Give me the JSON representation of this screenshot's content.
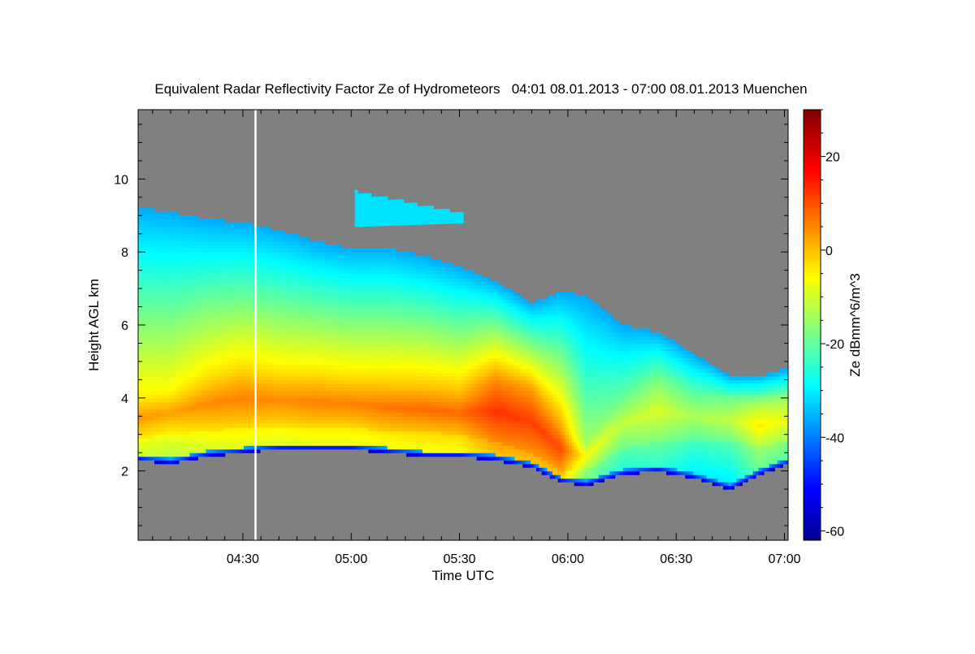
{
  "chart_data": {
    "type": "heatmap",
    "title": "Equivalent Radar Reflectivity Factor Ze of Hydrometeors   04:01 08.01.2013 - 07:00 08.01.2013 Muenchen",
    "xlabel": "Time UTC",
    "ylabel": "Height AGL km",
    "x_ticks": [
      "04:30",
      "05:00",
      "05:30",
      "06:00",
      "06:30",
      "07:00"
    ],
    "x_tick_minutes": [
      270,
      300,
      330,
      360,
      390,
      420
    ],
    "xlim_minutes": [
      241,
      421
    ],
    "y_ticks": [
      2,
      4,
      6,
      8,
      10
    ],
    "ylim": [
      0.1,
      11.9
    ],
    "colorbar": {
      "label": "Ze dBmm^6/m^3",
      "range": [
        -62,
        30
      ],
      "ticks": [
        -60,
        -40,
        -20,
        0,
        20
      ],
      "colormap": "jet"
    },
    "background_color": "#808080",
    "gap_line_minutes": 273.5,
    "cloud_profile": [
      {
        "t": 241,
        "base": 2.3,
        "top": 9.2,
        "core_lo": 2.9,
        "core_hi": 4.0,
        "core_ze": 5
      },
      {
        "t": 250,
        "base": 2.2,
        "top": 9.1,
        "core_lo": 3.0,
        "core_hi": 4.2,
        "core_ze": 4
      },
      {
        "t": 260,
        "base": 2.4,
        "top": 8.9,
        "core_lo": 3.1,
        "core_hi": 4.6,
        "core_ze": 6
      },
      {
        "t": 270,
        "base": 2.5,
        "top": 8.8,
        "core_lo": 3.2,
        "core_hi": 4.8,
        "core_ze": 7
      },
      {
        "t": 280,
        "base": 2.6,
        "top": 8.6,
        "core_lo": 3.2,
        "core_hi": 4.7,
        "core_ze": 6
      },
      {
        "t": 290,
        "base": 2.6,
        "top": 8.3,
        "core_lo": 3.2,
        "core_hi": 4.6,
        "core_ze": 7
      },
      {
        "t": 300,
        "base": 2.6,
        "top": 8.1,
        "core_lo": 3.2,
        "core_hi": 4.5,
        "core_ze": 7
      },
      {
        "t": 310,
        "base": 2.5,
        "top": 8.1,
        "core_lo": 3.1,
        "core_hi": 4.4,
        "core_ze": 8
      },
      {
        "t": 320,
        "base": 2.4,
        "top": 7.9,
        "core_lo": 3.1,
        "core_hi": 4.3,
        "core_ze": 9
      },
      {
        "t": 330,
        "base": 2.4,
        "top": 7.6,
        "core_lo": 3.0,
        "core_hi": 4.2,
        "core_ze": 9
      },
      {
        "t": 340,
        "base": 2.3,
        "top": 7.2,
        "core_lo": 2.8,
        "core_hi": 4.5,
        "core_ze": 14
      },
      {
        "t": 350,
        "base": 2.1,
        "top": 6.6,
        "core_lo": 2.5,
        "core_hi": 4.2,
        "core_ze": 13
      },
      {
        "t": 358,
        "base": 1.7,
        "top": 6.9,
        "core_lo": 2.0,
        "core_hi": 3.2,
        "core_ze": 12
      },
      {
        "t": 365,
        "base": 1.6,
        "top": 6.8,
        "core_lo": 2.0,
        "core_hi": 2.8,
        "core_ze": -5
      },
      {
        "t": 375,
        "base": 1.9,
        "top": 6.0,
        "core_lo": 2.6,
        "core_hi": 4.0,
        "core_ze": -10
      },
      {
        "t": 385,
        "base": 2.0,
        "top": 5.8,
        "core_lo": 2.8,
        "core_hi": 4.5,
        "core_ze": -8
      },
      {
        "t": 395,
        "base": 1.8,
        "top": 5.2,
        "core_lo": 2.8,
        "core_hi": 4.2,
        "core_ze": -12
      },
      {
        "t": 405,
        "base": 1.5,
        "top": 4.6,
        "core_lo": 2.8,
        "core_hi": 4.0,
        "core_ze": -10
      },
      {
        "t": 413,
        "base": 1.9,
        "top": 4.6,
        "core_lo": 2.7,
        "core_hi": 3.8,
        "core_ze": -3
      },
      {
        "t": 421,
        "base": 2.2,
        "top": 4.8,
        "core_lo": 2.8,
        "core_hi": 4.0,
        "core_ze": -6
      }
    ],
    "upper_fragment": {
      "t_start": 301,
      "t_end": 331,
      "base": 8.7,
      "top": 9.6,
      "ze": -30
    }
  }
}
